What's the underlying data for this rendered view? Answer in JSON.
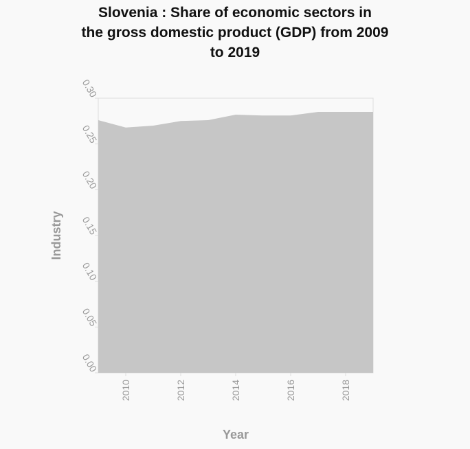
{
  "chart_data": {
    "type": "area",
    "title_lines": [
      "Slovenia : Share of economic sectors in",
      "the gross domestic product (GDP) from 2009",
      "to 2019"
    ],
    "xlabel": "Year",
    "ylabel": "Industry",
    "xlim": [
      2009,
      2019
    ],
    "ylim": [
      0,
      0.3
    ],
    "x_ticks": [
      2010,
      2012,
      2014,
      2016,
      2018
    ],
    "y_ticks": [
      "0.00",
      "0.05",
      "0.10",
      "0.15",
      "0.20",
      "0.25",
      "0.30"
    ],
    "grid": false,
    "series": [
      {
        "x": [
          2009,
          2010,
          2011,
          2012,
          2013,
          2014,
          2015,
          2016,
          2017,
          2018,
          2019
        ],
        "values": [
          0.276,
          0.268,
          0.27,
          0.275,
          0.276,
          0.282,
          0.281,
          0.281,
          0.285,
          0.285,
          0.285
        ]
      }
    ],
    "colors": {
      "area": "#c6c6c6",
      "axis": "#dddddd",
      "text": "#999999",
      "background": "#f9f9f9"
    }
  }
}
